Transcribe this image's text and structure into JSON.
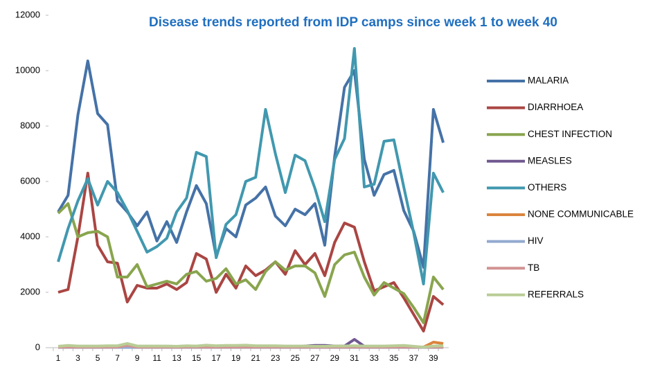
{
  "chart_data": {
    "type": "line",
    "title": "Disease trends reported from IDP camps since week 1 to week 40",
    "categories": [
      "1",
      null,
      "3",
      null,
      "5",
      null,
      "7",
      null,
      "9",
      null,
      "11",
      null,
      "13",
      null,
      "15",
      null,
      "17",
      null,
      "19",
      null,
      "21",
      null,
      "23",
      null,
      "25",
      null,
      "27",
      null,
      "29",
      null,
      "31",
      null,
      "33",
      null,
      "35",
      null,
      "37",
      null,
      "39",
      null
    ],
    "ylim": [
      0,
      12000
    ],
    "yticks": [
      0,
      2000,
      4000,
      6000,
      8000,
      10000,
      12000
    ],
    "legend": "right",
    "series": [
      {
        "name": "MALARIA",
        "color": "#4572a7",
        "values": [
          4900,
          5500,
          8400,
          10350,
          8450,
          8050,
          5300,
          4900,
          4400,
          4900,
          3850,
          4550,
          3800,
          4900,
          5850,
          5200,
          3300,
          4300,
          4000,
          5150,
          5400,
          5800,
          4750,
          4400,
          5000,
          4800,
          5200,
          3700,
          6900,
          9400,
          10000,
          6800,
          5500,
          6250,
          6400,
          4950,
          4200,
          2900,
          8600,
          7400
        ]
      },
      {
        "name": "DIARRHOEA",
        "color": "#aa4643",
        "values": [
          2000,
          2100,
          4000,
          6300,
          3700,
          3100,
          3050,
          1650,
          2250,
          2150,
          2150,
          2300,
          2100,
          2350,
          3400,
          3200,
          2000,
          2650,
          2150,
          2950,
          2600,
          2800,
          3100,
          2650,
          3500,
          3000,
          3400,
          2600,
          3800,
          4500,
          4350,
          3100,
          2050,
          2200,
          2350,
          1800,
          1200,
          600,
          1850,
          1550
        ]
      },
      {
        "name": "CHEST INFECTION",
        "color": "#89a54e",
        "values": [
          4850,
          5200,
          4000,
          4150,
          4200,
          4000,
          2550,
          2550,
          3000,
          2200,
          2300,
          2400,
          2300,
          2650,
          2750,
          2400,
          2500,
          2850,
          2300,
          2450,
          2100,
          2750,
          3100,
          2800,
          2950,
          2950,
          2700,
          1850,
          3000,
          3350,
          3450,
          2550,
          1900,
          2350,
          2150,
          1950,
          1450,
          900,
          2550,
          2100
        ]
      },
      {
        "name": "MEASLES",
        "color": "#71588f",
        "values": [
          20,
          20,
          20,
          20,
          20,
          20,
          20,
          20,
          20,
          20,
          20,
          20,
          20,
          20,
          20,
          20,
          20,
          20,
          20,
          20,
          20,
          20,
          20,
          20,
          20,
          60,
          80,
          80,
          60,
          60,
          300,
          50,
          20,
          20,
          20,
          20,
          20,
          20,
          20,
          20
        ]
      },
      {
        "name": "OTHERS",
        "color": "#4198af",
        "values": [
          3100,
          4300,
          5300,
          6100,
          5150,
          6000,
          5600,
          4950,
          4200,
          3450,
          3650,
          3950,
          4900,
          5400,
          7050,
          6900,
          3250,
          4450,
          4800,
          6000,
          6150,
          8600,
          7000,
          5600,
          6950,
          6750,
          5750,
          4550,
          6800,
          7550,
          10800,
          5800,
          5900,
          7450,
          7500,
          5800,
          4150,
          2300,
          6300,
          5600
        ]
      },
      {
        "name": "NONE COMMUNICABLE",
        "color": "#db843d",
        "values": [
          20,
          20,
          20,
          20,
          20,
          20,
          20,
          20,
          20,
          20,
          20,
          20,
          20,
          20,
          20,
          20,
          20,
          20,
          20,
          20,
          20,
          20,
          20,
          20,
          20,
          20,
          20,
          20,
          20,
          20,
          20,
          20,
          20,
          20,
          20,
          20,
          20,
          20,
          200,
          150
        ]
      },
      {
        "name": "HIV",
        "color": "#93a9cf",
        "values": [
          10,
          10,
          10,
          10,
          10,
          10,
          10,
          10,
          10,
          10,
          10,
          10,
          10,
          10,
          10,
          10,
          10,
          10,
          10,
          10,
          10,
          10,
          10,
          10,
          10,
          10,
          10,
          10,
          10,
          10,
          10,
          10,
          10,
          10,
          10,
          10,
          10,
          10,
          10,
          10
        ]
      },
      {
        "name": "TB",
        "color": "#d19392",
        "values": [
          20,
          20,
          20,
          20,
          20,
          20,
          20,
          80,
          20,
          20,
          20,
          20,
          20,
          20,
          20,
          20,
          20,
          20,
          20,
          20,
          20,
          20,
          20,
          20,
          20,
          20,
          20,
          20,
          20,
          20,
          20,
          20,
          20,
          20,
          20,
          20,
          20,
          20,
          20,
          20
        ]
      },
      {
        "name": "REFERRALS",
        "color": "#b9cd96",
        "values": [
          50,
          80,
          60,
          60,
          60,
          70,
          70,
          150,
          60,
          60,
          60,
          60,
          50,
          70,
          60,
          90,
          70,
          80,
          80,
          90,
          70,
          70,
          70,
          60,
          60,
          60,
          50,
          50,
          60,
          60,
          70,
          60,
          60,
          60,
          70,
          80,
          50,
          20,
          60,
          70
        ]
      }
    ]
  }
}
